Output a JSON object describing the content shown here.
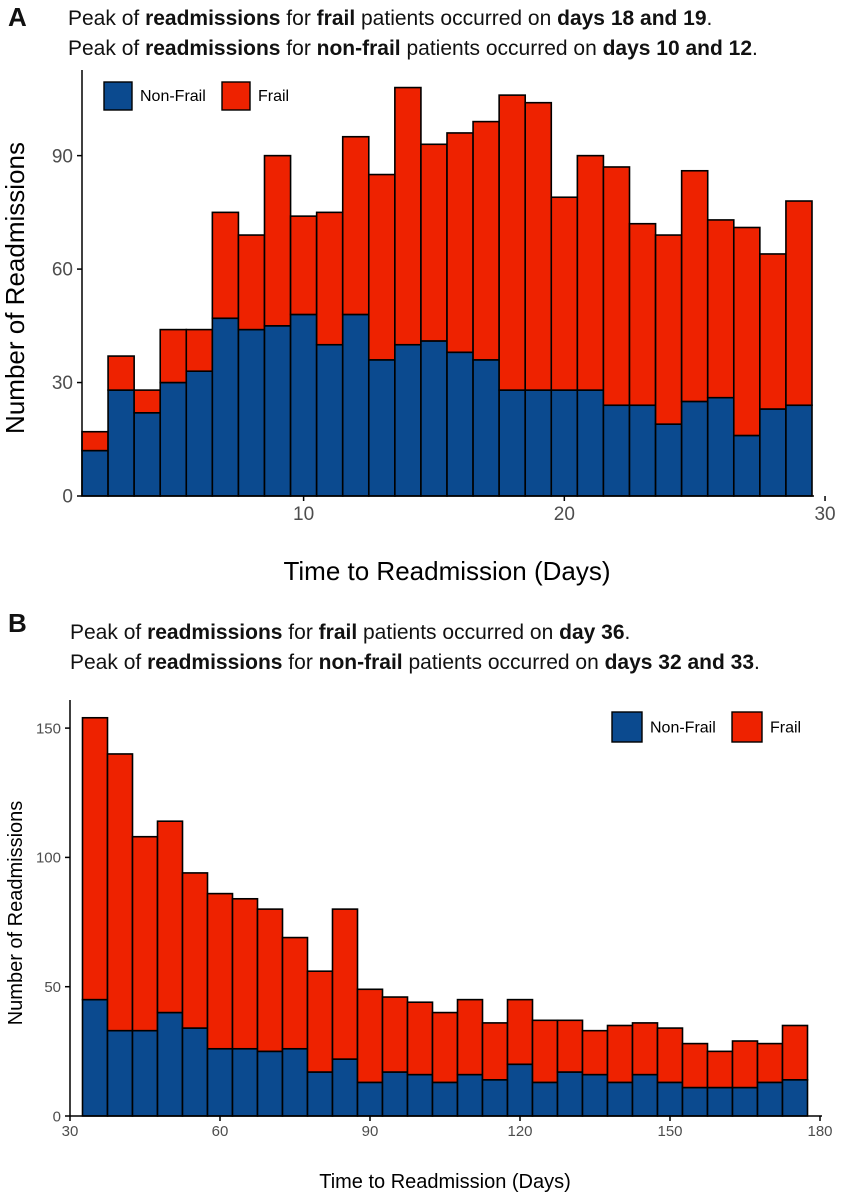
{
  "panels": [
    {
      "label": "A",
      "caption_lines": [
        [
          {
            "t": "Peak of ",
            "b": false
          },
          {
            "t": "readmissions",
            "b": true
          },
          {
            "t": " for ",
            "b": false
          },
          {
            "t": "frail",
            "b": true
          },
          {
            "t": " patients occurred on ",
            "b": false
          },
          {
            "t": "days 18 and 19",
            "b": true
          },
          {
            "t": ".",
            "b": false
          }
        ],
        [
          {
            "t": "Peak of ",
            "b": false
          },
          {
            "t": "readmissions",
            "b": true
          },
          {
            "t": " for ",
            "b": false
          },
          {
            "t": "non-frail",
            "b": true
          },
          {
            "t": " patients occurred on ",
            "b": false
          },
          {
            "t": "days 10 and 12",
            "b": true
          },
          {
            "t": ".",
            "b": false
          }
        ]
      ]
    },
    {
      "label": "B",
      "caption_lines": [
        [
          {
            "t": "Peak of ",
            "b": false
          },
          {
            "t": "readmissions",
            "b": true
          },
          {
            "t": " for ",
            "b": false
          },
          {
            "t": "frail",
            "b": true
          },
          {
            "t": " patients occurred on ",
            "b": false
          },
          {
            "t": "day 36",
            "b": true
          },
          {
            "t": ".",
            "b": false
          }
        ],
        [
          {
            "t": "Peak of ",
            "b": false
          },
          {
            "t": "readmissions",
            "b": true
          },
          {
            "t": " for ",
            "b": false
          },
          {
            "t": "non-frail",
            "b": true
          },
          {
            "t": " patients occurred on ",
            "b": false
          },
          {
            "t": "days 32 and 33",
            "b": true
          },
          {
            "t": ".",
            "b": false
          }
        ]
      ]
    }
  ],
  "chart_data": [
    {
      "type": "bar",
      "stacked": true,
      "xlabel": "Time to Readmission (Days)",
      "ylabel": "Number of Readmissions",
      "xlim": [
        1.5,
        29.5
      ],
      "ylim": [
        0,
        110
      ],
      "xticks": [
        10,
        20,
        30
      ],
      "yticks": [
        0,
        30,
        60,
        90
      ],
      "bin_width": 1,
      "x": [
        2,
        3,
        4,
        5,
        6,
        7,
        8,
        9,
        10,
        11,
        12,
        13,
        14,
        15,
        16,
        17,
        18,
        19,
        20,
        21,
        22,
        23,
        24,
        25,
        26,
        27,
        28,
        29
      ],
      "series": [
        {
          "name": "Non-Frail",
          "color": "#0b4a8f",
          "values": [
            12,
            28,
            22,
            30,
            33,
            47,
            44,
            45,
            48,
            40,
            48,
            36,
            40,
            41,
            38,
            36,
            28,
            28,
            28,
            28,
            24,
            24,
            19,
            25,
            26,
            16,
            23,
            24
          ]
        },
        {
          "name": "Frail",
          "color": "#ee2200",
          "values": [
            5,
            9,
            6,
            14,
            11,
            28,
            25,
            45,
            26,
            35,
            47,
            49,
            68,
            52,
            58,
            63,
            78,
            76,
            51,
            62,
            63,
            48,
            50,
            61,
            47,
            55,
            41,
            54
          ]
        }
      ],
      "legend": {
        "position": "top-left",
        "labels": [
          "Non-Frail",
          "Frail"
        ]
      }
    },
    {
      "type": "bar",
      "stacked": true,
      "xlabel": "Time to Readmission (Days)",
      "ylabel": "Number of Readmissions",
      "xlim": [
        30,
        180
      ],
      "ylim": [
        0,
        157
      ],
      "xticks": [
        30,
        60,
        90,
        120,
        150,
        180
      ],
      "yticks": [
        0,
        50,
        100,
        150
      ],
      "bin_width": 5,
      "x": [
        35,
        40,
        45,
        50,
        55,
        60,
        65,
        70,
        75,
        80,
        85,
        90,
        95,
        100,
        105,
        110,
        115,
        120,
        125,
        130,
        135,
        140,
        145,
        150,
        155,
        160,
        165,
        170,
        175
      ],
      "series": [
        {
          "name": "Non-Frail",
          "color": "#0b4a8f",
          "values": [
            45,
            33,
            33,
            40,
            34,
            26,
            26,
            25,
            26,
            17,
            22,
            13,
            17,
            16,
            13,
            16,
            14,
            20,
            13,
            17,
            16,
            13,
            16,
            13,
            11,
            11,
            11,
            13,
            14
          ]
        },
        {
          "name": "Frail",
          "color": "#ee2200",
          "values": [
            109,
            107,
            75,
            74,
            60,
            60,
            58,
            55,
            43,
            39,
            58,
            36,
            29,
            28,
            27,
            29,
            22,
            25,
            24,
            20,
            17,
            22,
            20,
            21,
            17,
            14,
            18,
            15,
            21
          ]
        }
      ],
      "legend": {
        "position": "top-right",
        "labels": [
          "Non-Frail",
          "Frail"
        ]
      }
    }
  ]
}
